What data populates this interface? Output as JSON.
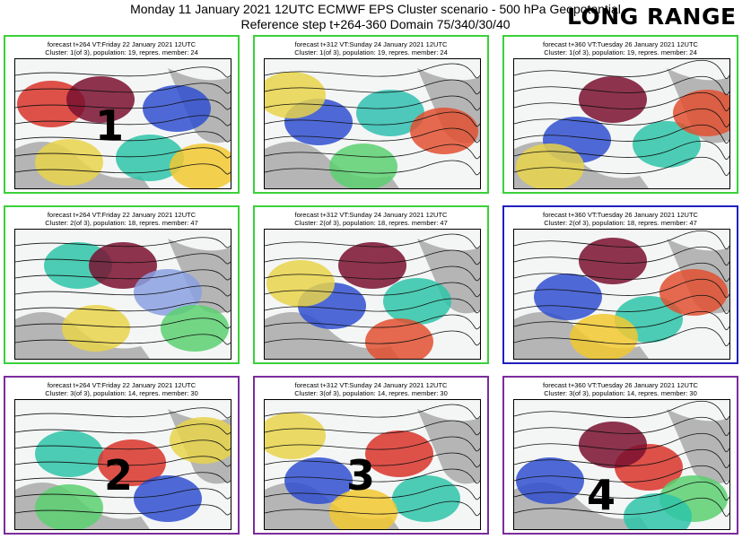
{
  "header": {
    "line1": "Monday 11 January 2021 12UTC ECMWF EPS Cluster scenario - 500 hPa Geopotential",
    "line2": "Reference step t+264-360 Domain 75/340/30/40",
    "badge": "LONG RANGE"
  },
  "panels": [
    {
      "title": "forecast t+264 VT:Friday 22 January 2021 12UTC",
      "subtitle": "Cluster: 1(of 3), population: 19, repres. member: 24",
      "border": "#3ad13a",
      "number": "1"
    },
    {
      "title": "forecast t+312 VT:Sunday 24 January 2021 12UTC",
      "subtitle": "Cluster: 1(of 3), population: 19, repres. member: 24",
      "border": "#3ad13a",
      "number": ""
    },
    {
      "title": "forecast t+360 VT:Tuesday 26 January 2021 12UTC",
      "subtitle": "Cluster: 1(of 3), population: 19, repres. member: 24",
      "border": "#3ad13a",
      "number": ""
    },
    {
      "title": "forecast t+264 VT:Friday 22 January 2021 12UTC",
      "subtitle": "Cluster: 2(of 3), population: 18, repres. member: 47",
      "border": "#3ad13a",
      "number": ""
    },
    {
      "title": "forecast t+312 VT:Sunday 24 January 2021 12UTC",
      "subtitle": "Cluster: 2(of 3), population: 18, repres. member: 47",
      "border": "#3ad13a",
      "number": ""
    },
    {
      "title": "forecast t+360 VT:Tuesday 26 January 2021 12UTC",
      "subtitle": "Cluster: 2(of 3), population: 18, repres. member: 47",
      "border": "#2020c0",
      "number": ""
    },
    {
      "title": "forecast t+264 VT:Friday 22 January 2021 12UTC",
      "subtitle": "Cluster: 3(of 3), population: 14, repres. member: 30",
      "border": "#7a2d9c",
      "number": "2"
    },
    {
      "title": "forecast t+312 VT:Sunday 24 January 2021 12UTC",
      "subtitle": "Cluster: 3(of 3), population: 14, repres. member: 30",
      "border": "#7a2d9c",
      "number": "3"
    },
    {
      "title": "forecast t+360 VT:Tuesday 26 January 2021 12UTC",
      "subtitle": "Cluster: 3(of 3), population: 14, repres. member: 30",
      "border": "#7a2d9c",
      "number": "4"
    }
  ]
}
